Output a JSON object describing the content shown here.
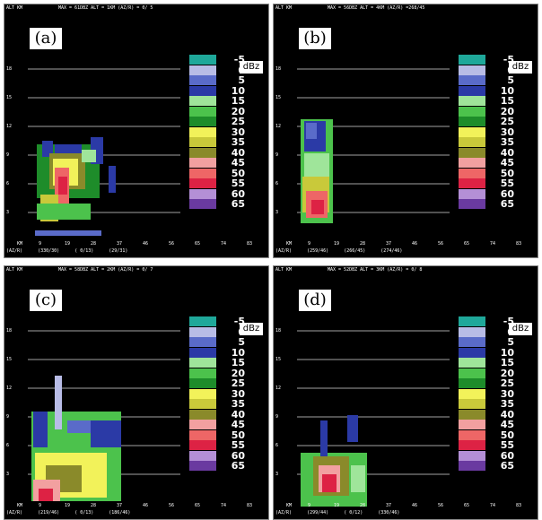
{
  "colors": {
    "background": "#000000",
    "gridline": "#d9d9d9",
    "text": "#ffffff",
    "scale": [
      "#1fa89a",
      "#b8bce6",
      "#5a6bc9",
      "#2b3aa6",
      "#9fe59a",
      "#4cc24c",
      "#1e8c2a",
      "#f2f25a",
      "#c9c93a",
      "#8a8a2a",
      "#f2a0a0",
      "#ee6666",
      "#dd2244",
      "#b48fd6",
      "#6a3aa0"
    ]
  },
  "legend": {
    "levels": [
      "-5",
      "0",
      "5",
      "10",
      "15",
      "20",
      "25",
      "30",
      "35",
      "40",
      "45",
      "50",
      "55",
      "60",
      "65"
    ],
    "unit": "dBz"
  },
  "axis": {
    "y_label": "ALT KM",
    "y_ticks": [
      "18",
      "15",
      "12",
      "9",
      "6",
      "3"
    ],
    "x_label": "KM",
    "x_ticks": [
      "9",
      "19",
      "28",
      "37",
      "46",
      "56",
      "65",
      "74",
      "83"
    ],
    "az_label": "(AZ/R)"
  },
  "panels": [
    {
      "tag": "(a)",
      "header": "MAX = 61DBZ  ALT = 1KM   (AZ/R) = 0/ 5",
      "foot": [
        "(330/30)",
        "( 0/13)",
        "(29/31)"
      ]
    },
    {
      "tag": "(b)",
      "header": "MAX = 56DBZ  ALT = 4KM   (AZ/R) =268/45",
      "foot": [
        "(259/46)",
        "(266/45)",
        "(274/46)"
      ]
    },
    {
      "tag": "(c)",
      "header": "MAX = 58DBZ  ALT = 2KM   (AZ/R) = 0/ 7",
      "foot": [
        "(219/46)",
        "( 0/13)",
        "(186/46)"
      ]
    },
    {
      "tag": "(d)",
      "header": "MAX = 52DBZ  ALT = 3KM   (AZ/R) = 0/ 8",
      "foot": [
        "(299/44)",
        "( 0/12)",
        "(330/46)"
      ]
    }
  ]
}
